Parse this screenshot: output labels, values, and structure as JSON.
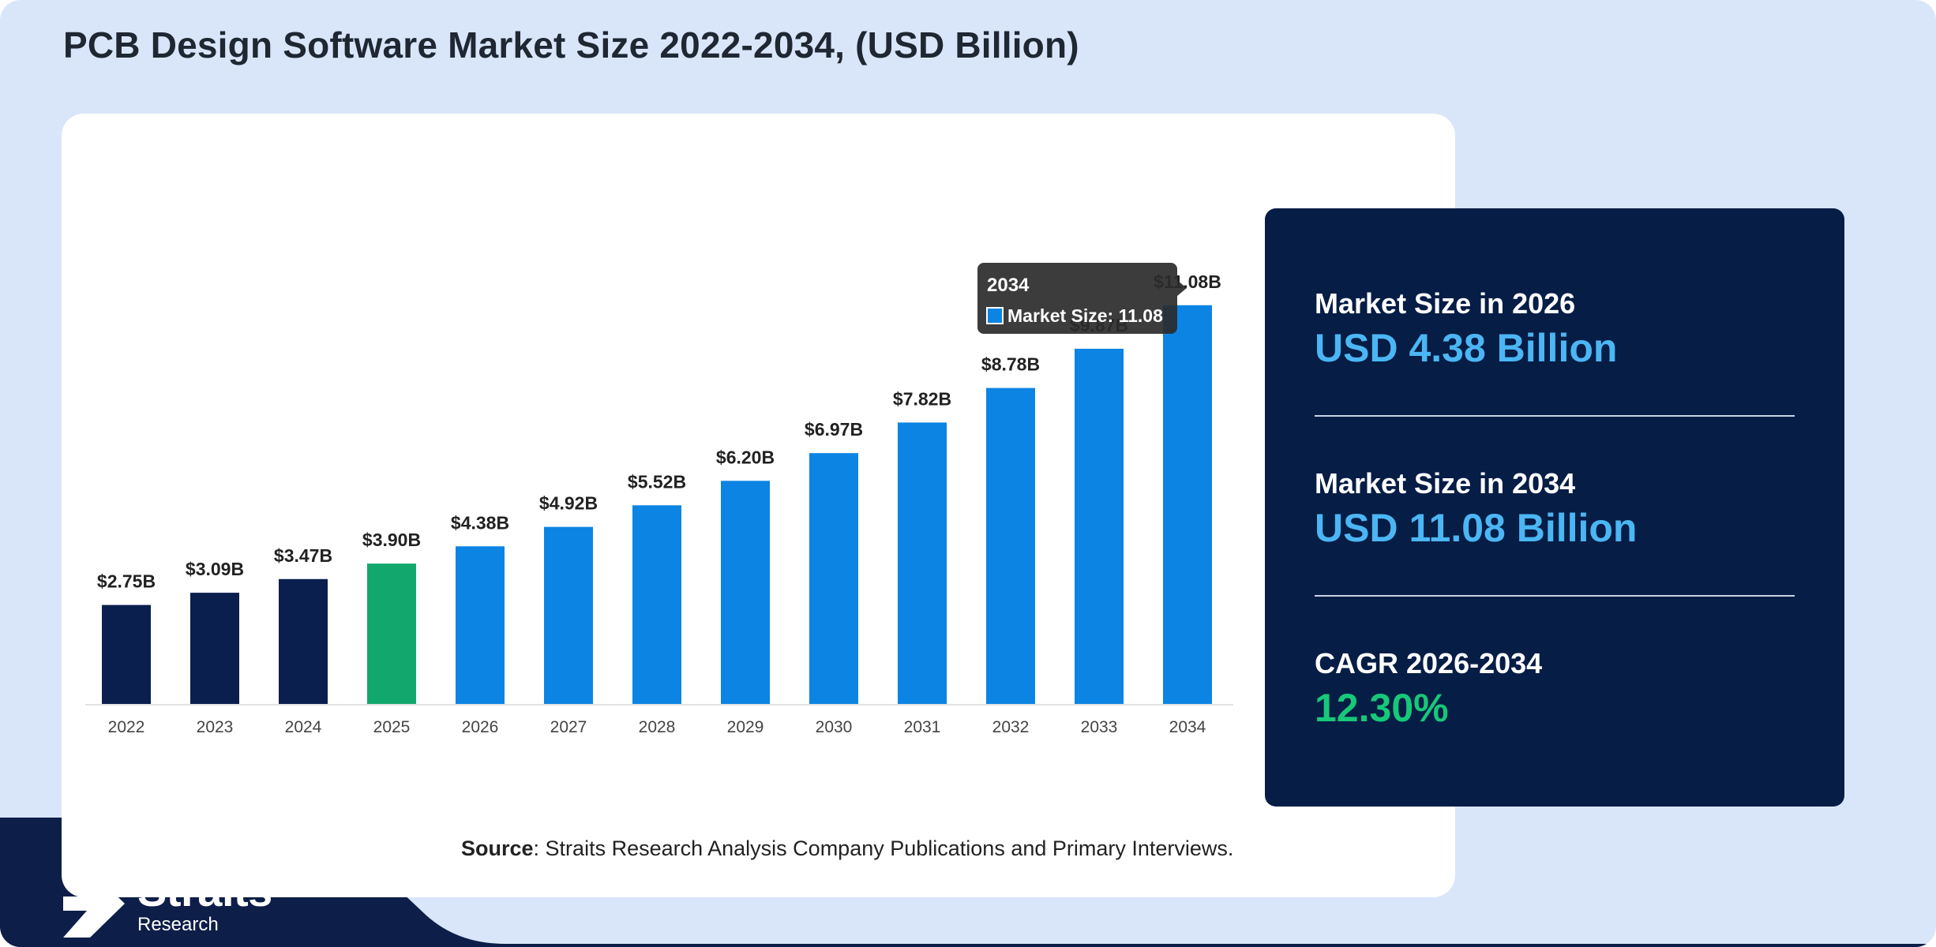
{
  "header": {
    "title": "PCB Design Software Market Size 2022-2034, (USD Billion)"
  },
  "colors": {
    "historical": "#0a1f4d",
    "base_year": "#12a86d",
    "forecast": "#0c84e3",
    "panel_bg": "#061d46",
    "accent_blue": "#4bb6f3",
    "accent_green": "#17c878"
  },
  "chart_data": {
    "type": "bar",
    "title": "PCB Design Software Market Size 2022-2034, (USD Billion)",
    "xlabel": "",
    "ylabel": "",
    "categories": [
      "2022",
      "2023",
      "2024",
      "2025",
      "2026",
      "2027",
      "2028",
      "2029",
      "2030",
      "2031",
      "2032",
      "2033",
      "2034"
    ],
    "values": [
      2.75,
      3.09,
      3.47,
      3.9,
      4.38,
      4.92,
      5.52,
      6.2,
      6.97,
      7.82,
      8.78,
      9.87,
      11.08
    ],
    "value_labels": [
      "$2.75B",
      "$3.09B",
      "$3.47B",
      "$3.90B",
      "$4.38B",
      "$4.92B",
      "$5.52B",
      "$6.20B",
      "$6.97B",
      "$7.82B",
      "$8.78B",
      "$9.87B",
      "$11.08B"
    ],
    "bar_colors": [
      "#0a1f4d",
      "#0a1f4d",
      "#0a1f4d",
      "#12a86d",
      "#0c84e3",
      "#0c84e3",
      "#0c84e3",
      "#0c84e3",
      "#0c84e3",
      "#0c84e3",
      "#0c84e3",
      "#0c84e3",
      "#0c84e3"
    ],
    "grid": false,
    "legend": "none",
    "tooltip": {
      "title": "2034",
      "text": "Market Size: 11.08",
      "swatch_color": "#0c84e3"
    }
  },
  "stats": [
    {
      "label": "Market Size in 2026",
      "value": "USD 4.38 Billion"
    },
    {
      "label": "Market Size in 2034",
      "value": "USD 11.08 Billion"
    },
    {
      "label": "CAGR 2026-2034",
      "value": "12.30%"
    }
  ],
  "source": {
    "prefix": "Source",
    "text": ": Straits Research Analysis Company Publications and Primary Interviews."
  },
  "logo": {
    "name": "Straits",
    "sub": "Research"
  }
}
